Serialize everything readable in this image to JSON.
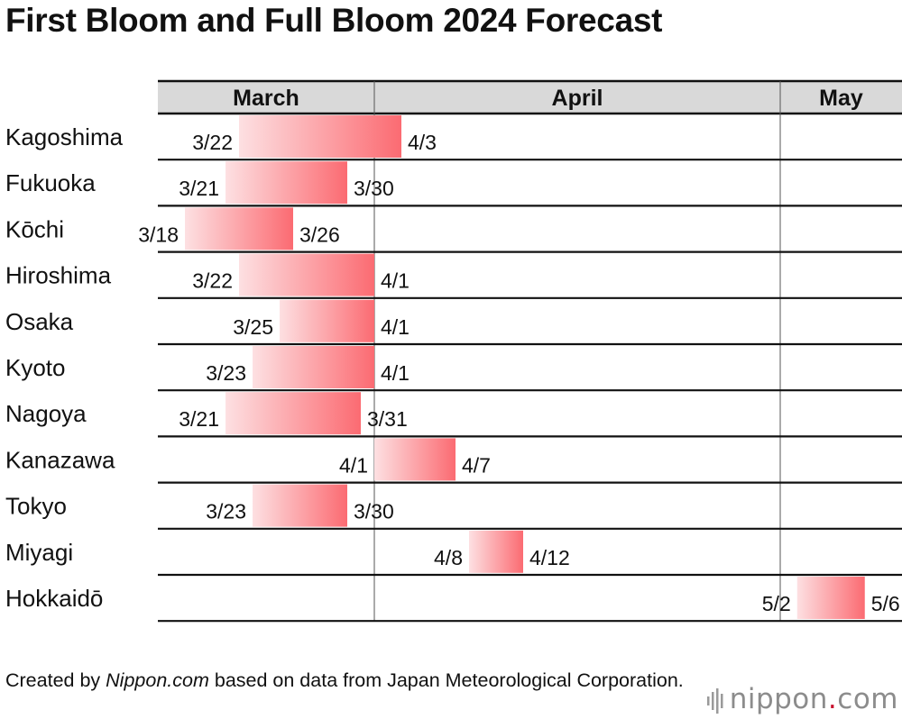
{
  "chart_data": {
    "type": "bar",
    "title": "First Bloom and Full Bloom 2024 Forecast",
    "months": [
      "March",
      "April",
      "May"
    ],
    "series": [
      {
        "name": "First Bloom"
      },
      {
        "name": "Full Bloom"
      }
    ],
    "categories": [
      "Kagoshima",
      "Fukuoka",
      "Kōchi",
      "Hiroshima",
      "Osaka",
      "Kyoto",
      "Nagoya",
      "Kanazawa",
      "Tokyo",
      "Miyagi",
      "Hokkaidō"
    ],
    "rows": [
      {
        "city": "Kagoshima",
        "first": "3/22",
        "full": "4/3"
      },
      {
        "city": "Fukuoka",
        "first": "3/21",
        "full": "3/30"
      },
      {
        "city": "Kōchi",
        "first": "3/18",
        "full": "3/26"
      },
      {
        "city": "Hiroshima",
        "first": "3/22",
        "full": "4/1"
      },
      {
        "city": "Osaka",
        "first": "3/25",
        "full": "4/1"
      },
      {
        "city": "Kyoto",
        "first": "3/23",
        "full": "4/1"
      },
      {
        "city": "Nagoya",
        "first": "3/21",
        "full": "3/31"
      },
      {
        "city": "Kanazawa",
        "first": "4/1",
        "full": "4/7"
      },
      {
        "city": "Tokyo",
        "first": "3/23",
        "full": "3/30"
      },
      {
        "city": "Miyagi",
        "first": "4/8",
        "full": "4/12"
      },
      {
        "city": "Hokkaidō",
        "first": "5/2",
        "full": "5/6"
      }
    ],
    "colors": {
      "bar_start": "#fde0e2",
      "bar_end": "#fb6b72",
      "header_bg": "#d9d9d9",
      "line": "#111111",
      "divider": "#555555"
    }
  },
  "footer": {
    "prefix": "Created by ",
    "source_name": "Nippon.com",
    "suffix": " based on data from Japan Meteorological Corporation."
  },
  "logo": {
    "name": "nippon",
    "dot": ".",
    "tld": "com"
  }
}
